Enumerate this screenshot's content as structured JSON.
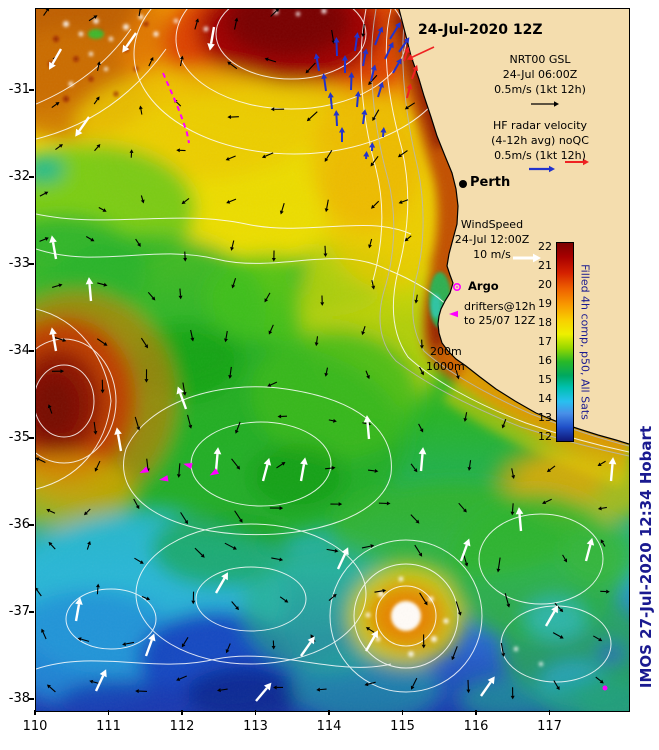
{
  "title": "24-Jul-2020 12Z",
  "legend": {
    "nrt": {
      "line1": "NRT00 GSL",
      "line2": "24-Jul 06:00Z",
      "line3": "0.5m/s (1kt 12h)"
    },
    "hf": {
      "line1": "HF radar velocity",
      "line2": "(4-12h avg) noQC",
      "line3": "0.5m/s (1kt 12h)"
    },
    "city": "Perth",
    "wind": {
      "line1": "WindSpeed",
      "line2": "24-Jul 12:00Z",
      "line3": "10 m/s"
    },
    "argo_label": "Argo",
    "drifters": {
      "line1": "drifters@12h",
      "line2": "to 25/07 12Z"
    },
    "depth_200": "200m",
    "depth_1000": "1000m"
  },
  "colorbar": {
    "label": "Filled 4h comp, p50, All Sats",
    "ticks": [
      "22",
      "21",
      "20",
      "19",
      "18",
      "17",
      "16",
      "15",
      "14",
      "13",
      "12"
    ]
  },
  "axes": {
    "x_ticks": [
      "110",
      "111",
      "112",
      "113",
      "114",
      "115",
      "116",
      "117"
    ],
    "y_ticks": [
      "-31",
      "-32",
      "-33",
      "-34",
      "-35",
      "-36",
      "-37",
      "-38"
    ]
  },
  "watermark": "IMOS 27-Jul-2020 12:34 Hobart",
  "colors": {
    "nrt_arrow": "#000000",
    "hf_arrow": "#2233cc",
    "flag_arrow": "#ee2222",
    "wind_arrow": "#ffffff",
    "drifter": "#ff00ff",
    "land": "#f4ddae",
    "annotation": "#1a1a90"
  }
}
